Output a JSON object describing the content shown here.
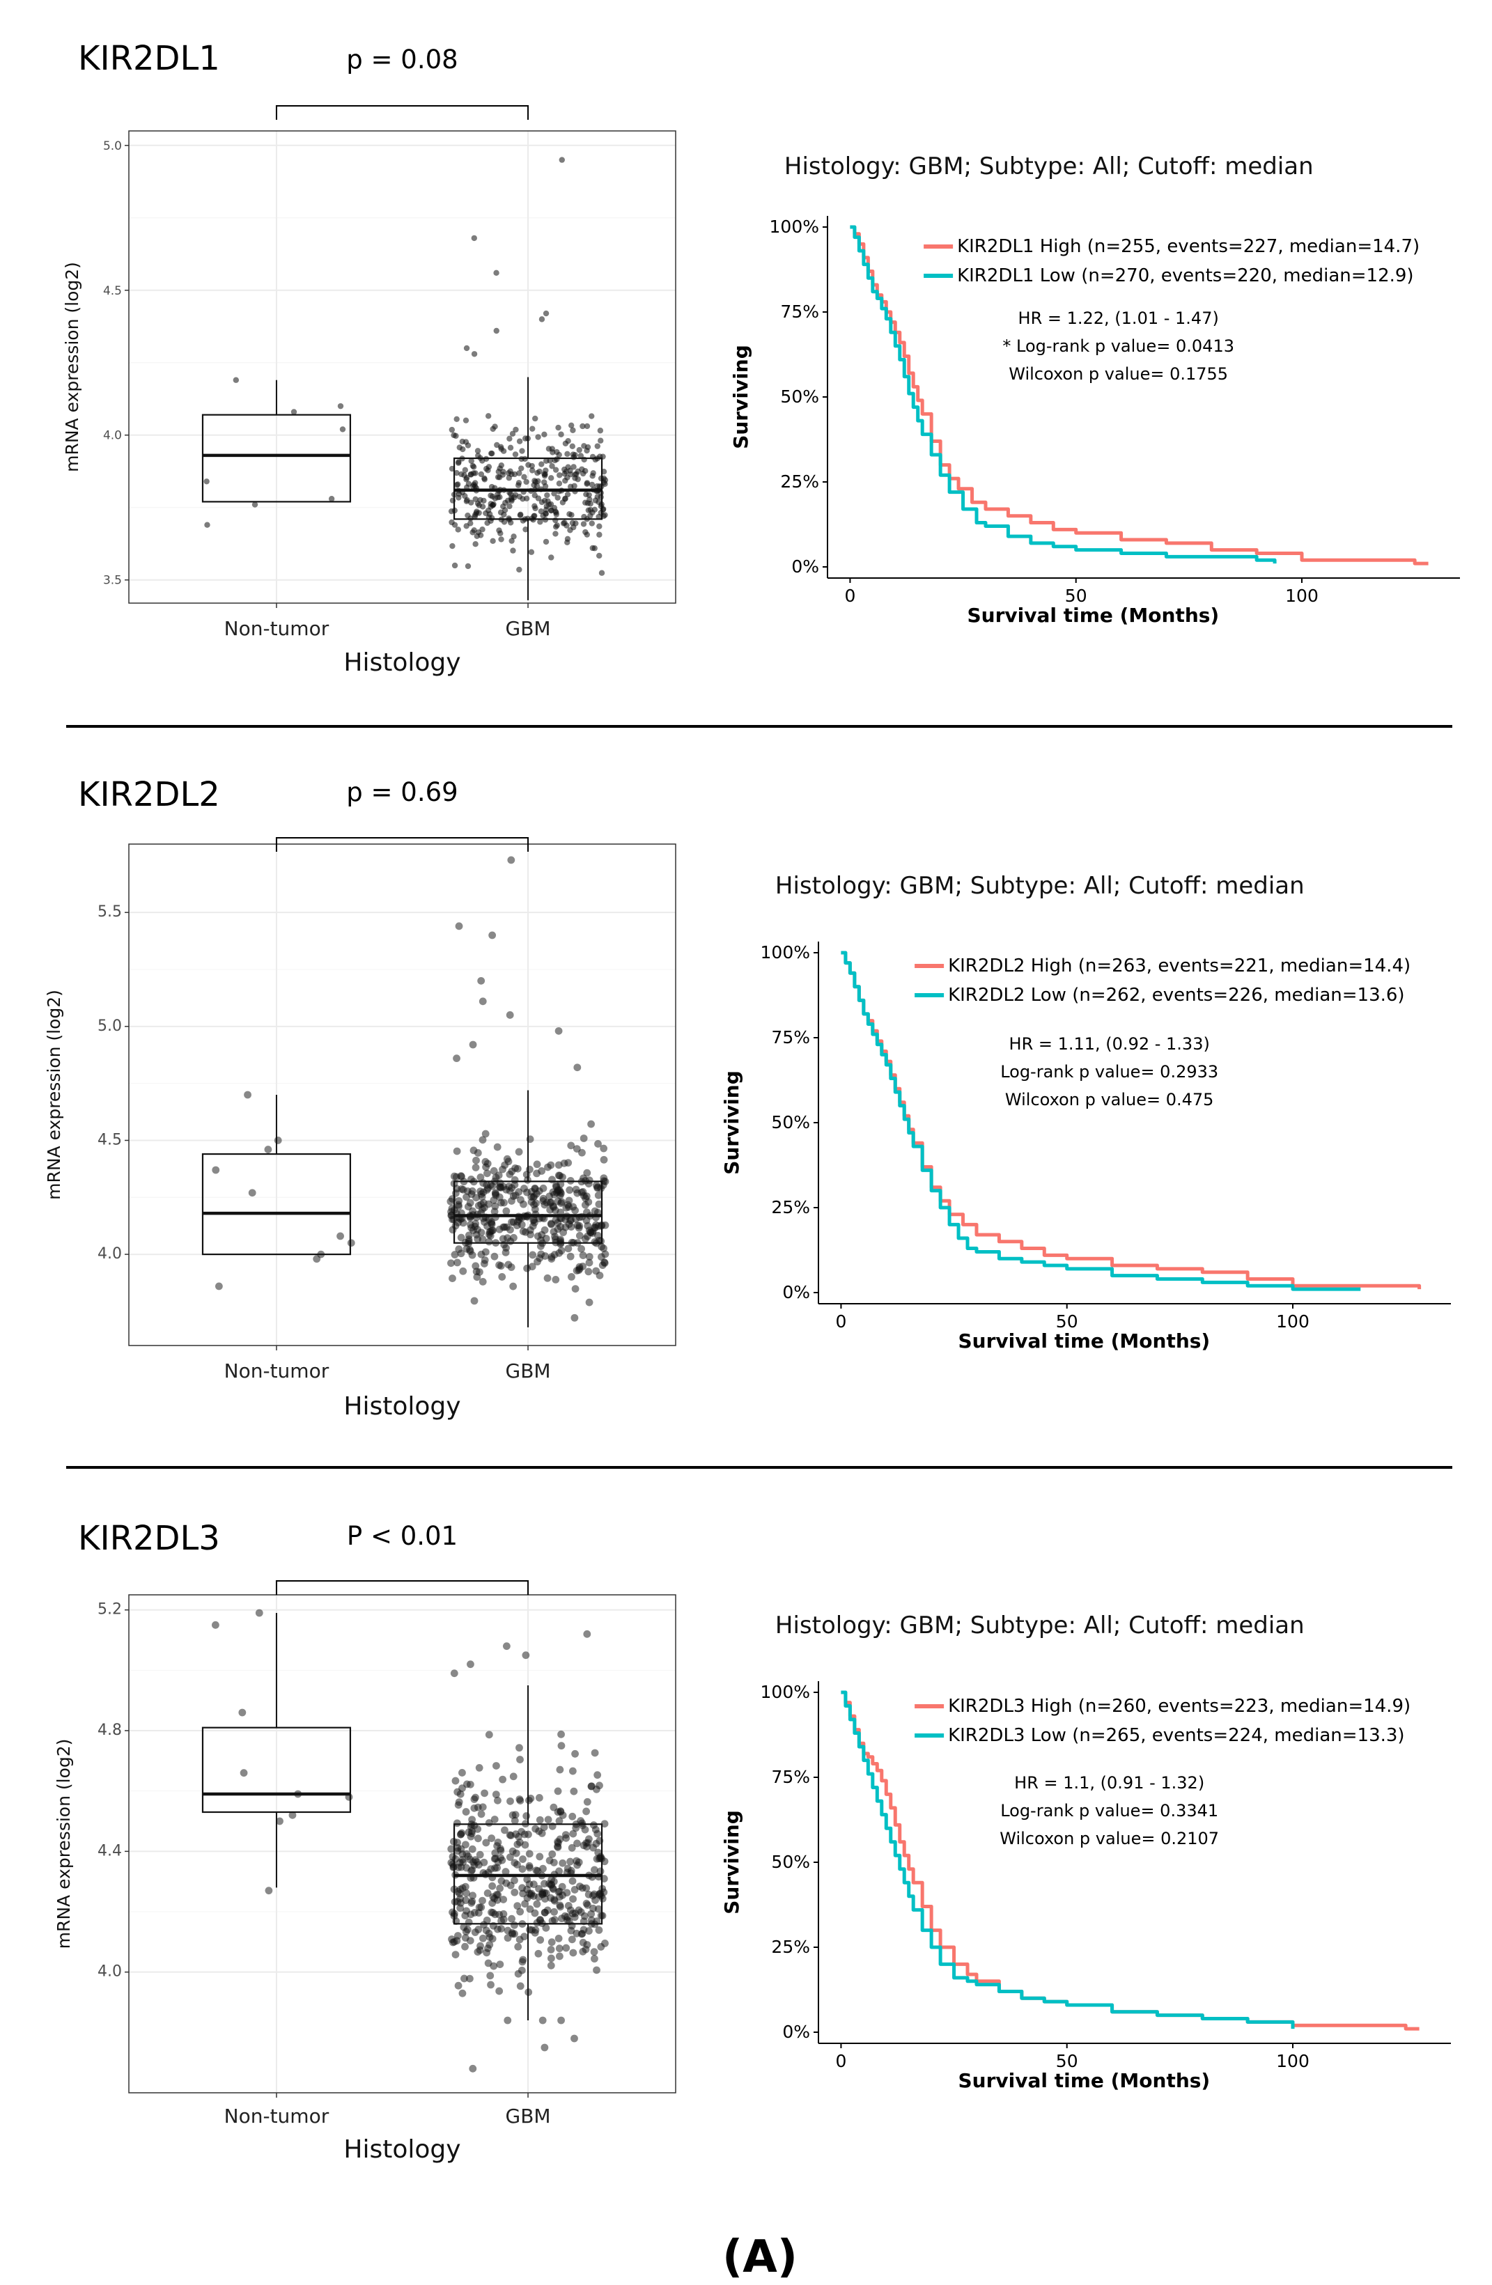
{
  "figure_label": "(A)",
  "chart_data": [
    {
      "type": "box",
      "gene": "KIR2DL1",
      "title": "KIR2DL1",
      "pvalue_label": "p = 0.08",
      "xlabel": "Histology",
      "ylabel": "mRNA expression (log2)",
      "ylim": [
        3.42,
        5.05
      ],
      "yticks": [
        "3.5",
        "4.0",
        "4.5",
        "5.0"
      ],
      "ytick_values": [
        3.5,
        4.0,
        4.5,
        5.0
      ],
      "categories": [
        "Non-tumor",
        "GBM"
      ],
      "boxes": [
        {
          "name": "Non-tumor",
          "q1": 3.77,
          "median": 3.93,
          "q3": 4.07,
          "whisker_low": 3.77,
          "whisker_high": 4.19,
          "points": [
            4.19,
            4.1,
            4.08,
            4.02,
            3.84,
            3.78,
            3.76,
            3.69
          ]
        },
        {
          "name": "GBM",
          "q1": 3.71,
          "median": 3.81,
          "q3": 3.92,
          "whisker_low": 3.43,
          "whisker_high": 4.2,
          "n": 380,
          "outliers": [
            4.95,
            4.68,
            4.56,
            4.42,
            4.4,
            4.36,
            4.3,
            4.28
          ]
        }
      ]
    },
    {
      "type": "line",
      "subtype": "kaplan-meier",
      "gene": "KIR2DL1",
      "title": "Histology: GBM; Subtype: All; Cutoff: median",
      "xlabel": "Survival time (Months)",
      "ylabel": "Surviving",
      "xlim": [
        -5,
        135
      ],
      "ylim": [
        0,
        1
      ],
      "xticks": [
        "0",
        "50",
        "100"
      ],
      "xtick_values": [
        0,
        50,
        100
      ],
      "yticks": [
        "0%",
        "25%",
        "50%",
        "75%",
        "100%"
      ],
      "ytick_values": [
        0,
        0.25,
        0.5,
        0.75,
        1
      ],
      "series": [
        {
          "name": "KIR2DL1 High (n=255, events=227, median=14.7)",
          "color": "#F8766D",
          "x": [
            0,
            1,
            2,
            3,
            4,
            5,
            6,
            7,
            8,
            9,
            10,
            11,
            12,
            13,
            14,
            15,
            16,
            18,
            20,
            22,
            24,
            27,
            30,
            35,
            40,
            45,
            50,
            60,
            70,
            80,
            90,
            100,
            115,
            125,
            128
          ],
          "y": [
            1,
            0.98,
            0.95,
            0.91,
            0.87,
            0.83,
            0.8,
            0.78,
            0.75,
            0.72,
            0.69,
            0.66,
            0.62,
            0.57,
            0.53,
            0.49,
            0.45,
            0.37,
            0.3,
            0.26,
            0.23,
            0.19,
            0.17,
            0.15,
            0.13,
            0.11,
            0.1,
            0.08,
            0.07,
            0.05,
            0.04,
            0.02,
            0.02,
            0.01,
            0.01
          ]
        },
        {
          "name": "KIR2DL1 Low (n=270, events=220, median=12.9)",
          "color": "#00BFC4",
          "x": [
            0,
            1,
            2,
            3,
            4,
            5,
            6,
            7,
            8,
            9,
            10,
            11,
            12,
            13,
            14,
            15,
            16,
            18,
            20,
            22,
            25,
            28,
            30,
            35,
            40,
            45,
            50,
            60,
            70,
            80,
            90,
            94
          ],
          "y": [
            1,
            0.97,
            0.93,
            0.89,
            0.85,
            0.81,
            0.79,
            0.76,
            0.73,
            0.69,
            0.65,
            0.61,
            0.56,
            0.51,
            0.47,
            0.43,
            0.39,
            0.33,
            0.27,
            0.22,
            0.17,
            0.13,
            0.12,
            0.09,
            0.07,
            0.06,
            0.05,
            0.04,
            0.03,
            0.03,
            0.02,
            0.01
          ]
        }
      ],
      "annotations": [
        "HR = 1.22, (1.01 - 1.47)",
        "* Log-rank p value= 0.0413",
        "Wilcoxon p value= 0.1755"
      ]
    },
    {
      "type": "box",
      "gene": "KIR2DL2",
      "title": "KIR2DL2",
      "pvalue_label": "p = 0.69",
      "xlabel": "Histology",
      "ylabel": "mRNA expression (log2)",
      "ylim": [
        3.6,
        5.8
      ],
      "yticks": [
        "4.0",
        "4.5",
        "5.0",
        "5.5"
      ],
      "ytick_values": [
        4.0,
        4.5,
        5.0,
        5.5
      ],
      "categories": [
        "Non-tumor",
        "GBM"
      ],
      "boxes": [
        {
          "name": "Non-tumor",
          "q1": 4.0,
          "median": 4.18,
          "q3": 4.44,
          "whisker_low": 4.0,
          "whisker_high": 4.7,
          "points": [
            4.7,
            4.5,
            4.46,
            4.37,
            4.27,
            4.08,
            4.05,
            4.0,
            3.98,
            3.86
          ]
        },
        {
          "name": "GBM",
          "q1": 4.05,
          "median": 4.17,
          "q3": 4.32,
          "whisker_low": 3.68,
          "whisker_high": 4.72,
          "n": 420,
          "outliers": [
            5.73,
            5.44,
            5.4,
            5.2,
            5.11,
            5.05,
            4.98,
            4.92,
            4.86,
            4.82
          ]
        }
      ]
    },
    {
      "type": "line",
      "subtype": "kaplan-meier",
      "gene": "KIR2DL2",
      "title": "Histology: GBM; Subtype: All; Cutoff: median",
      "xlabel": "Survival time (Months)",
      "ylabel": "Surviving",
      "xlim": [
        -5,
        135
      ],
      "ylim": [
        0,
        1
      ],
      "xticks": [
        "0",
        "50",
        "100"
      ],
      "xtick_values": [
        0,
        50,
        100
      ],
      "yticks": [
        "0%",
        "25%",
        "50%",
        "75%",
        "100%"
      ],
      "ytick_values": [
        0,
        0.25,
        0.5,
        0.75,
        1
      ],
      "series": [
        {
          "name": "KIR2DL2 High (n=263, events=221, median=14.4)",
          "color": "#F8766D",
          "x": [
            0,
            1,
            2,
            3,
            4,
            5,
            6,
            7,
            8,
            9,
            10,
            11,
            12,
            13,
            14,
            15,
            16,
            18,
            20,
            22,
            24,
            27,
            30,
            35,
            40,
            45,
            50,
            60,
            70,
            80,
            90,
            100,
            115,
            125,
            128
          ],
          "y": [
            1,
            0.97,
            0.94,
            0.9,
            0.86,
            0.82,
            0.8,
            0.77,
            0.74,
            0.71,
            0.68,
            0.64,
            0.6,
            0.56,
            0.52,
            0.48,
            0.44,
            0.37,
            0.31,
            0.27,
            0.23,
            0.2,
            0.17,
            0.15,
            0.13,
            0.11,
            0.1,
            0.08,
            0.07,
            0.06,
            0.04,
            0.02,
            0.02,
            0.02,
            0.01
          ]
        },
        {
          "name": "KIR2DL2 Low (n=262, events=226, median=13.6)",
          "color": "#00BFC4",
          "x": [
            0,
            1,
            2,
            3,
            4,
            5,
            6,
            7,
            8,
            9,
            10,
            11,
            12,
            13,
            14,
            15,
            16,
            18,
            20,
            22,
            24,
            26,
            28,
            30,
            35,
            40,
            45,
            50,
            60,
            70,
            80,
            90,
            100,
            110,
            115
          ],
          "y": [
            1,
            0.97,
            0.94,
            0.9,
            0.86,
            0.82,
            0.79,
            0.76,
            0.73,
            0.7,
            0.67,
            0.63,
            0.59,
            0.55,
            0.51,
            0.47,
            0.43,
            0.36,
            0.3,
            0.25,
            0.2,
            0.16,
            0.13,
            0.12,
            0.1,
            0.09,
            0.08,
            0.07,
            0.05,
            0.04,
            0.03,
            0.02,
            0.01,
            0.01,
            0.01
          ]
        }
      ],
      "annotations": [
        "HR = 1.11, (0.92 - 1.33)",
        "Log-rank p value= 0.2933",
        "Wilcoxon p value= 0.475"
      ]
    },
    {
      "type": "box",
      "gene": "KIR2DL3",
      "title": "KIR2DL3",
      "pvalue_label": "P < 0.01",
      "xlabel": "Histology",
      "ylabel": "mRNA expression (log2)",
      "ylim": [
        3.6,
        5.25
      ],
      "yticks": [
        "4.0",
        "4.4",
        "4.8",
        "5.2"
      ],
      "ytick_values": [
        4.0,
        4.4,
        4.8,
        5.2
      ],
      "categories": [
        "Non-tumor",
        "GBM"
      ],
      "boxes": [
        {
          "name": "Non-tumor",
          "q1": 4.53,
          "median": 4.59,
          "q3": 4.81,
          "whisker_low": 4.28,
          "whisker_high": 5.19,
          "points": [
            5.19,
            5.15,
            4.86,
            4.66,
            4.59,
            4.58,
            4.52,
            4.5,
            4.27
          ]
        },
        {
          "name": "GBM",
          "q1": 4.16,
          "median": 4.32,
          "q3": 4.49,
          "whisker_low": 3.84,
          "whisker_high": 4.95,
          "n": 460,
          "outliers": [
            5.12,
            5.08,
            5.05,
            5.02,
            4.99,
            3.78,
            3.75,
            3.68
          ]
        }
      ]
    },
    {
      "type": "line",
      "subtype": "kaplan-meier",
      "gene": "KIR2DL3",
      "title": "Histology: GBM; Subtype: All; Cutoff: median",
      "xlabel": "Survival time (Months)",
      "ylabel": "Surviving",
      "xlim": [
        -5,
        135
      ],
      "ylim": [
        0,
        1
      ],
      "xticks": [
        "0",
        "50",
        "100"
      ],
      "xtick_values": [
        0,
        50,
        100
      ],
      "yticks": [
        "0%",
        "25%",
        "50%",
        "75%",
        "100%"
      ],
      "ytick_values": [
        0,
        0.25,
        0.5,
        0.75,
        1
      ],
      "series": [
        {
          "name": "KIR2DL3 High (n=260, events=223, median=14.9)",
          "color": "#F8766D",
          "x": [
            0,
            1,
            2,
            3,
            4,
            5,
            6,
            7,
            8,
            9,
            10,
            11,
            12,
            13,
            14,
            15,
            16,
            18,
            20,
            22,
            25,
            28,
            30,
            35,
            40,
            45,
            50,
            60,
            70,
            80,
            90,
            100,
            115,
            125,
            128
          ],
          "y": [
            1,
            0.97,
            0.93,
            0.89,
            0.85,
            0.82,
            0.81,
            0.79,
            0.77,
            0.74,
            0.7,
            0.66,
            0.61,
            0.56,
            0.52,
            0.48,
            0.44,
            0.37,
            0.3,
            0.25,
            0.2,
            0.17,
            0.15,
            0.12,
            0.1,
            0.09,
            0.08,
            0.06,
            0.05,
            0.04,
            0.03,
            0.02,
            0.02,
            0.01,
            0.01
          ]
        },
        {
          "name": "KIR2DL3 Low (n=265, events=224, median=13.3)",
          "color": "#00BFC4",
          "x": [
            0,
            1,
            2,
            3,
            4,
            5,
            6,
            7,
            8,
            9,
            10,
            11,
            12,
            13,
            14,
            15,
            16,
            18,
            20,
            22,
            25,
            28,
            30,
            35,
            40,
            45,
            50,
            60,
            70,
            80,
            90,
            100
          ],
          "y": [
            1,
            0.96,
            0.92,
            0.88,
            0.84,
            0.8,
            0.76,
            0.72,
            0.68,
            0.64,
            0.6,
            0.56,
            0.52,
            0.48,
            0.44,
            0.4,
            0.36,
            0.3,
            0.25,
            0.2,
            0.16,
            0.15,
            0.14,
            0.12,
            0.1,
            0.09,
            0.08,
            0.06,
            0.05,
            0.04,
            0.03,
            0.01
          ]
        }
      ],
      "annotations": [
        "HR = 1.1, (0.91 - 1.32)",
        "Log-rank p value= 0.3341",
        "Wilcoxon p value= 0.2107"
      ]
    }
  ]
}
